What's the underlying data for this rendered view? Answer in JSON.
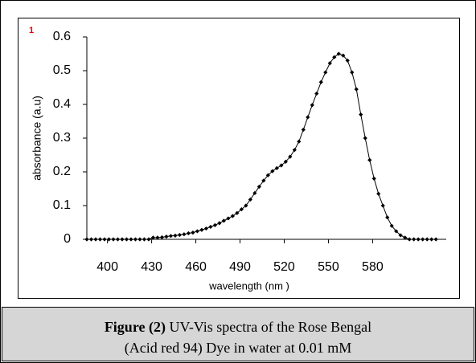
{
  "chart_data": {
    "type": "line",
    "annotation": "1",
    "xlabel": "wavelength (nm )",
    "ylabel": "absorbance (a.u)",
    "xlim": [
      386,
      630
    ],
    "xticks": [
      400,
      430,
      460,
      490,
      520,
      550,
      580
    ],
    "ylim": [
      0,
      0.6
    ],
    "yticks": [
      0,
      0.1,
      0.2,
      0.3,
      0.4,
      0.5,
      0.6
    ],
    "series": [
      {
        "color": "#000000",
        "x": [
          386,
          389,
          392,
          395,
          398,
          401,
          404,
          407,
          410,
          413,
          416,
          419,
          422,
          425,
          428,
          431,
          434,
          437,
          440,
          443,
          446,
          449,
          452,
          455,
          458,
          461,
          464,
          467,
          470,
          473,
          476,
          479,
          482,
          485,
          488,
          491,
          494,
          497,
          500,
          503,
          506,
          509,
          512,
          515,
          518,
          521,
          524,
          527,
          530,
          533,
          536,
          539,
          542,
          545,
          548,
          551,
          554,
          557,
          560,
          563,
          566,
          569,
          572,
          575,
          578,
          581,
          584,
          587,
          590,
          593,
          596,
          599,
          602,
          605,
          608,
          611,
          614,
          617,
          620,
          623
        ],
        "values": [
          0,
          0,
          0,
          0,
          0,
          0,
          0,
          0,
          0,
          0,
          0,
          0,
          0,
          0,
          0,
          0.005,
          0.005,
          0.006,
          0.008,
          0.01,
          0.011,
          0.013,
          0.015,
          0.018,
          0.02,
          0.024,
          0.028,
          0.032,
          0.037,
          0.042,
          0.048,
          0.055,
          0.062,
          0.069,
          0.078,
          0.089,
          0.1,
          0.118,
          0.137,
          0.156,
          0.174,
          0.19,
          0.202,
          0.211,
          0.219,
          0.23,
          0.245,
          0.265,
          0.29,
          0.325,
          0.362,
          0.398,
          0.432,
          0.466,
          0.495,
          0.522,
          0.54,
          0.55,
          0.545,
          0.53,
          0.495,
          0.445,
          0.37,
          0.3,
          0.235,
          0.18,
          0.135,
          0.1,
          0.065,
          0.04,
          0.024,
          0.012,
          0.005,
          0,
          0,
          0,
          0,
          0,
          0,
          0
        ]
      }
    ]
  },
  "caption": {
    "label": "Figure (2)",
    "line1": " UV-Vis spectra of the Rose Bengal",
    "line2": "(Acid red 94) Dye in water at 0.01 mM"
  }
}
